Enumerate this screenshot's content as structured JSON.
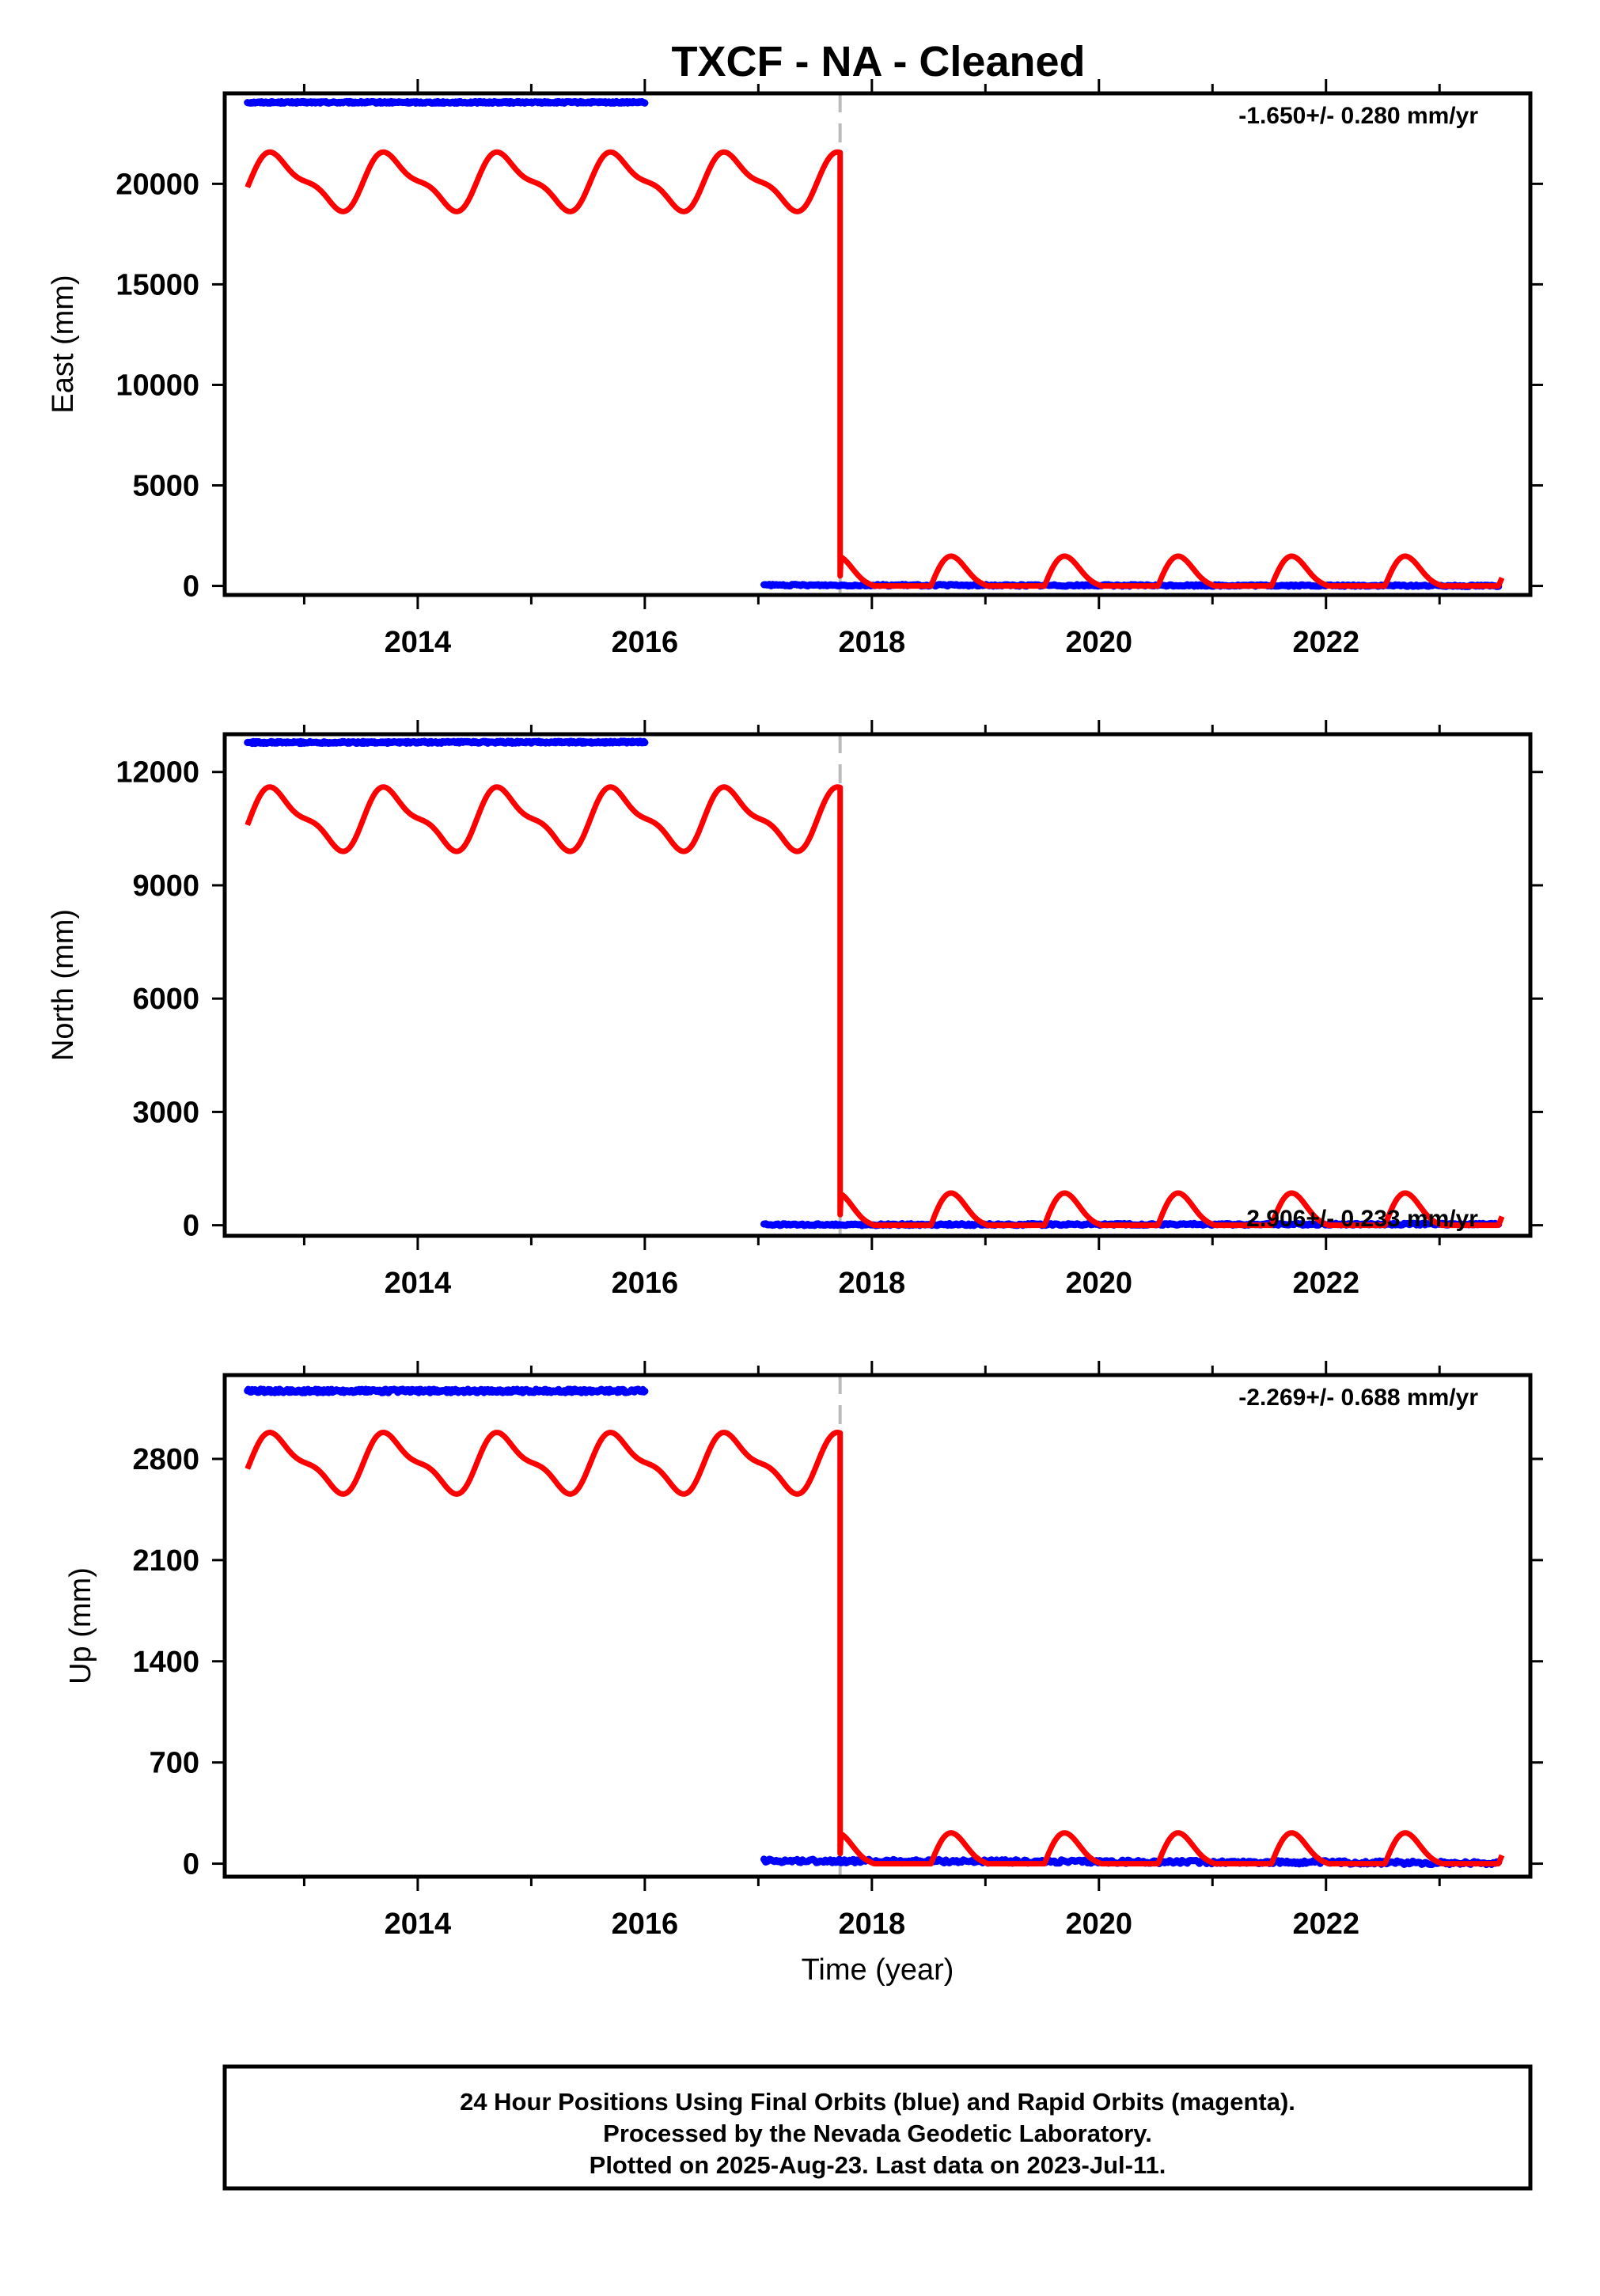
{
  "title": "TXCF  - NA - Cleaned",
  "chart_data": [
    {
      "type": "scatter",
      "ylabel": "East (mm)",
      "rate": "-1.650+/- 0.280 mm/yr",
      "xlim": [
        2012.3,
        2023.8
      ],
      "ylim": [
        -450,
        24500
      ],
      "yticks": [
        0,
        5000,
        10000,
        15000,
        20000
      ],
      "ytick_labels": [
        "0",
        "5000",
        "10000",
        "15000",
        "20000"
      ],
      "xticks": [
        2014,
        2016,
        2018,
        2020,
        2022
      ],
      "xtick_labels": [
        "2014",
        "2016",
        "2018",
        "2020",
        "2022"
      ],
      "offset_epoch": 2017.72,
      "series": [
        {
          "color": "#0000ff",
          "segments": [
            {
              "x_start": 2012.5,
              "x_end": 2016.0,
              "y_start": 24050,
              "y_end": 24050,
              "scatter": 40
            },
            {
              "x_start": 2017.05,
              "x_end": 2023.52,
              "y_start": 40,
              "y_end": 10,
              "scatter": 40
            }
          ]
        },
        {
          "color": "#ff0000",
          "model": {
            "seg1": {
              "x_start": 2012.5,
              "x_end": 2017.72,
              "base": 20100,
              "amp_annual": 1250,
              "amp_semiannual": 450,
              "phase": 0.52
            },
            "jump_to": 500,
            "seg2": {
              "x_start": 2017.72,
              "x_end": 2023.55,
              "base": 0,
              "amp_annual": 1250,
              "amp_semiannual": 450,
              "phase": 0.52,
              "floor": 0
            }
          }
        }
      ]
    },
    {
      "type": "scatter",
      "ylabel": "North (mm)",
      "rate": "2.906+/- 0.233 mm/yr",
      "xlim": [
        2012.3,
        2023.8
      ],
      "ylim": [
        -280,
        13000
      ],
      "yticks": [
        0,
        3000,
        6000,
        9000,
        12000
      ],
      "ytick_labels": [
        "0",
        "3000",
        "6000",
        "9000",
        "12000"
      ],
      "xticks": [
        2014,
        2016,
        2018,
        2020,
        2022
      ],
      "xtick_labels": [
        "2014",
        "2016",
        "2018",
        "2020",
        "2022"
      ],
      "offset_epoch": 2017.72,
      "series": [
        {
          "color": "#0000ff",
          "segments": [
            {
              "x_start": 2012.5,
              "x_end": 2016.0,
              "y_start": 12780,
              "y_end": 12790,
              "scatter": 25
            },
            {
              "x_start": 2017.05,
              "x_end": 2023.52,
              "y_start": 15,
              "y_end": 30,
              "scatter": 25
            }
          ]
        },
        {
          "color": "#ff0000",
          "model": {
            "seg1": {
              "x_start": 2012.5,
              "x_end": 2017.72,
              "base": 10750,
              "amp_annual": 720,
              "amp_semiannual": 260,
              "phase": 0.52
            },
            "jump_to": 280,
            "seg2": {
              "x_start": 2017.72,
              "x_end": 2023.55,
              "base": 0,
              "amp_annual": 720,
              "amp_semiannual": 260,
              "phase": 0.52,
              "floor": 0
            }
          }
        }
      ]
    },
    {
      "type": "scatter",
      "ylabel": "Up (mm)",
      "rate": "-2.269+/- 0.688 mm/yr",
      "xlim": [
        2012.3,
        2023.8
      ],
      "ylim": [
        -90,
        3380
      ],
      "yticks": [
        0,
        700,
        1400,
        2100,
        2800
      ],
      "ytick_labels": [
        "0",
        "700",
        "1400",
        "2100",
        "2800"
      ],
      "xticks": [
        2014,
        2016,
        2018,
        2020,
        2022
      ],
      "xtick_labels": [
        "2014",
        "2016",
        "2018",
        "2020",
        "2022"
      ],
      "offset_epoch": 2017.72,
      "xlabel": "Time (year)",
      "series": [
        {
          "color": "#0000ff",
          "segments": [
            {
              "x_start": 2012.5,
              "x_end": 2016.0,
              "y_start": 3270,
              "y_end": 3270,
              "scatter": 12
            },
            {
              "x_start": 2017.05,
              "x_end": 2023.52,
              "y_start": 20,
              "y_end": 5,
              "scatter": 12
            }
          ]
        },
        {
          "color": "#ff0000",
          "model": {
            "seg1": {
              "x_start": 2012.5,
              "x_end": 2017.72,
              "base": 2770,
              "amp_annual": 180,
              "amp_semiannual": 65,
              "phase": 0.52
            },
            "jump_to": 70,
            "seg2": {
              "x_start": 2017.72,
              "x_end": 2023.55,
              "base": 0,
              "amp_annual": 180,
              "amp_semiannual": 65,
              "phase": 0.52,
              "floor": 0
            }
          }
        }
      ]
    }
  ],
  "footer": {
    "line1": "24 Hour Positions Using Final Orbits (blue) and Rapid Orbits (magenta).",
    "line2": "Processed by the Nevada Geodetic Laboratory.",
    "line3": "Plotted on 2025-Aug-23. Last data on 2023-Jul-11."
  }
}
